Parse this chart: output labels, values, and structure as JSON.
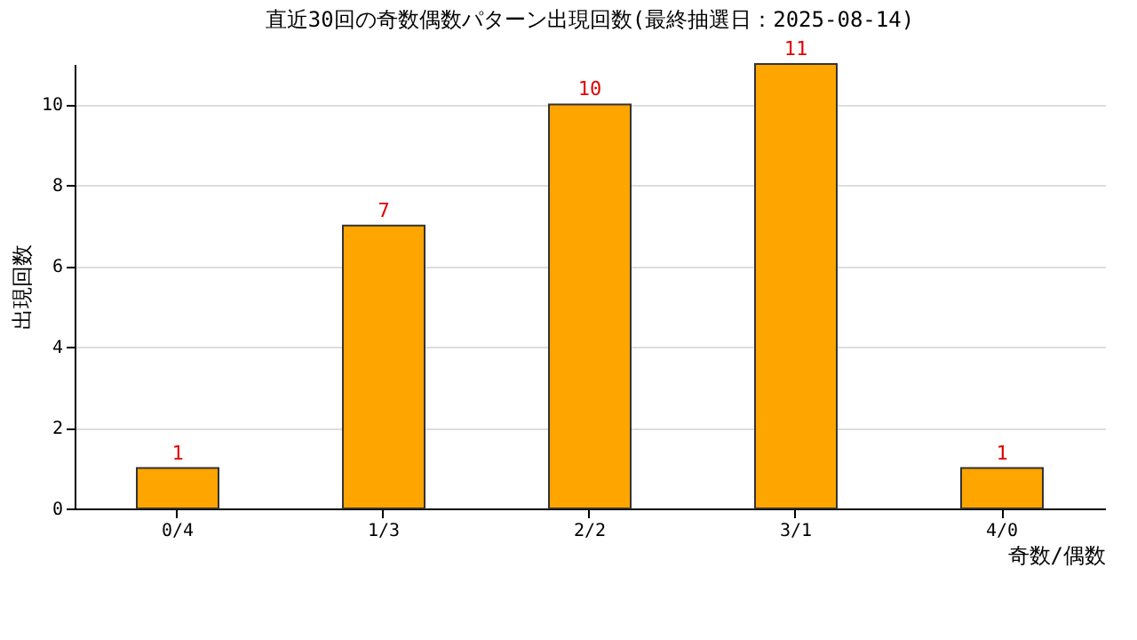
{
  "chart_data": {
    "type": "bar",
    "title": "直近30回の奇数偶数パターン出現回数(最終抽選日：2025-08-14)",
    "xlabel": "奇数/偶数",
    "ylabel": "出現回数",
    "categories": [
      "0/4",
      "1/3",
      "2/2",
      "3/1",
      "4/0"
    ],
    "values": [
      1,
      7,
      10,
      11,
      1
    ],
    "color": "#ffa500",
    "ylim": [
      0,
      11
    ],
    "yticks": [
      0,
      2,
      4,
      6,
      8,
      10
    ],
    "grid": "y",
    "data_labels": true
  }
}
